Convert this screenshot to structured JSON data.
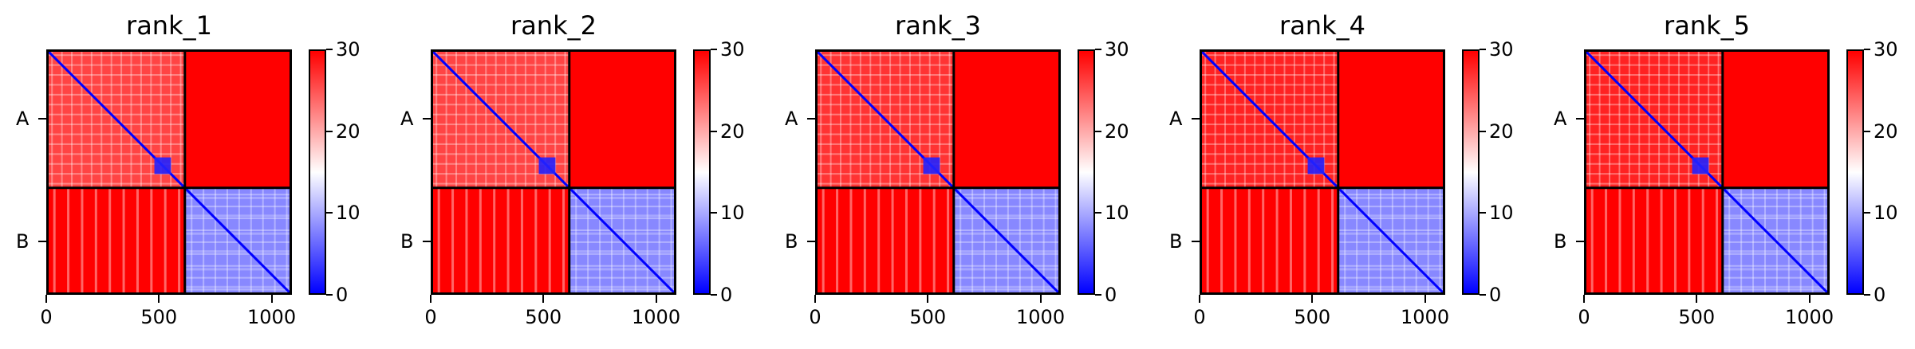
{
  "chart_data": [
    {
      "type": "heatmap",
      "title": "rank_1",
      "xlim": [
        0,
        1090
      ],
      "ylim": [
        0,
        1090
      ],
      "x_ticks": [
        "0",
        "500",
        "1000"
      ],
      "y_ticks": [
        "A",
        "B"
      ],
      "chain_boundary": 615,
      "colorbar": {
        "range": [
          0,
          30
        ],
        "ticks": [
          "0",
          "10",
          "20",
          "30"
        ],
        "colors": [
          "#0000ff",
          "#ffffff",
          "#ff0000"
        ]
      },
      "intra_A_mean": 26,
      "inter_chain_mean": 30,
      "intra_B_mean": 8
    },
    {
      "type": "heatmap",
      "title": "rank_2",
      "xlim": [
        0,
        1090
      ],
      "ylim": [
        0,
        1090
      ],
      "x_ticks": [
        "0",
        "500",
        "1000"
      ],
      "y_ticks": [
        "A",
        "B"
      ],
      "chain_boundary": 615,
      "colorbar": {
        "range": [
          0,
          30
        ],
        "ticks": [
          "0",
          "10",
          "20",
          "30"
        ],
        "colors": [
          "#0000ff",
          "#ffffff",
          "#ff0000"
        ]
      },
      "intra_A_mean": 26,
      "inter_chain_mean": 30,
      "intra_B_mean": 8
    },
    {
      "type": "heatmap",
      "title": "rank_3",
      "xlim": [
        0,
        1090
      ],
      "ylim": [
        0,
        1090
      ],
      "x_ticks": [
        "0",
        "500",
        "1000"
      ],
      "y_ticks": [
        "A",
        "B"
      ],
      "chain_boundary": 615,
      "colorbar": {
        "range": [
          0,
          30
        ],
        "ticks": [
          "0",
          "10",
          "20",
          "30"
        ],
        "colors": [
          "#0000ff",
          "#ffffff",
          "#ff0000"
        ]
      },
      "intra_A_mean": 27,
      "inter_chain_mean": 30,
      "intra_B_mean": 8
    },
    {
      "type": "heatmap",
      "title": "rank_4",
      "xlim": [
        0,
        1090
      ],
      "ylim": [
        0,
        1090
      ],
      "x_ticks": [
        "0",
        "500",
        "1000"
      ],
      "y_ticks": [
        "A",
        "B"
      ],
      "chain_boundary": 615,
      "colorbar": {
        "range": [
          0,
          30
        ],
        "ticks": [
          "0",
          "10",
          "20",
          "30"
        ],
        "colors": [
          "#0000ff",
          "#ffffff",
          "#ff0000"
        ]
      },
      "intra_A_mean": 28,
      "inter_chain_mean": 30,
      "intra_B_mean": 8
    },
    {
      "type": "heatmap",
      "title": "rank_5",
      "xlim": [
        0,
        1090
      ],
      "ylim": [
        0,
        1090
      ],
      "x_ticks": [
        "0",
        "500",
        "1000"
      ],
      "y_ticks": [
        "A",
        "B"
      ],
      "chain_boundary": 615,
      "colorbar": {
        "range": [
          0,
          30
        ],
        "ticks": [
          "0",
          "10",
          "20",
          "30"
        ],
        "colors": [
          "#0000ff",
          "#ffffff",
          "#ff0000"
        ]
      },
      "intra_A_mean": 28,
      "inter_chain_mean": 30,
      "intra_B_mean": 8
    }
  ]
}
